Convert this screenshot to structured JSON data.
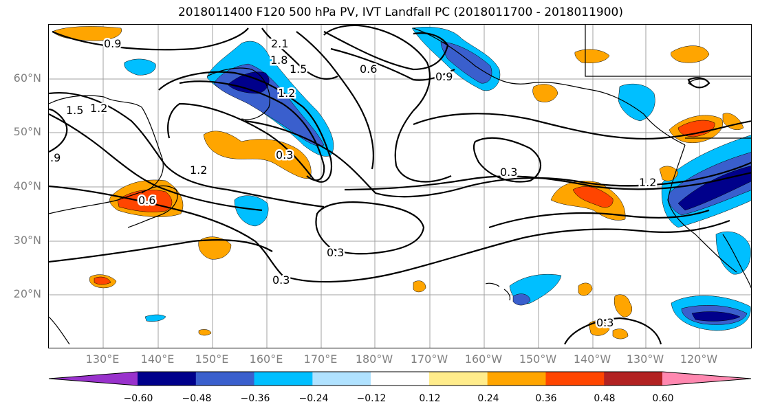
{
  "title": "2018011400 F120 500 hPa PV, IVT Landfall PC (2018011700 - 2018011900)",
  "lat_labels": [
    "60°N",
    "50°N",
    "40°N",
    "30°N",
    "20°N"
  ],
  "lon_labels": [
    "130°E",
    "140°E",
    "150°E",
    "160°E",
    "170°E",
    "180°W",
    "170°W",
    "160°W",
    "150°W",
    "140°W",
    "130°W",
    "120°W"
  ],
  "contour_labels": [
    "0.9",
    "2.1",
    "1.8",
    "1.5",
    "1.2",
    "0.6",
    "0.9",
    "1.5",
    "1.2",
    ".9",
    "1.2",
    "0.3",
    "0.3",
    "0.6",
    "1.2",
    "0.3",
    "0.3",
    "0.3"
  ],
  "colorbar": {
    "ticks": [
      "−0.60",
      "−0.48",
      "−0.36",
      "−0.24",
      "−0.12",
      "0.12",
      "0.24",
      "0.36",
      "0.48",
      "0.60"
    ],
    "colors": [
      "#9932cc",
      "#00008b",
      "#3a5fcd",
      "#00bfff",
      "#b0e2ff",
      "#ffffff",
      "#ffec8b",
      "#ffa500",
      "#ff4500",
      "#b22222",
      "#ff88b0"
    ]
  },
  "colors": {
    "contour": "#000000",
    "grid": "#a0a0a0",
    "coast": "#000000"
  }
}
